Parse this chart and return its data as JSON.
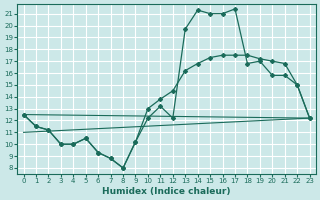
{
  "title": "",
  "xlabel": "Humidex (Indice chaleur)",
  "background_color": "#cce8e8",
  "grid_color": "#ffffff",
  "line_color": "#1a6b5a",
  "x_ticks": [
    0,
    1,
    2,
    3,
    4,
    5,
    6,
    7,
    8,
    9,
    10,
    11,
    12,
    13,
    14,
    15,
    16,
    17,
    18,
    19,
    20,
    21,
    22,
    23
  ],
  "y_ticks": [
    8,
    9,
    10,
    11,
    12,
    13,
    14,
    15,
    16,
    17,
    18,
    19,
    20,
    21
  ],
  "ylim": [
    7.5,
    21.8
  ],
  "xlim": [
    -0.5,
    23.5
  ],
  "series1_x": [
    0,
    1,
    2,
    3,
    4,
    5,
    6,
    7,
    8,
    9,
    10,
    11,
    12,
    13,
    14,
    15,
    16,
    17,
    18,
    19,
    20,
    21,
    22,
    23
  ],
  "series1_y": [
    12.5,
    11.5,
    11.2,
    10.0,
    10.0,
    10.5,
    9.3,
    8.8,
    8.0,
    10.2,
    12.2,
    13.2,
    12.2,
    19.7,
    21.3,
    21.0,
    21.0,
    21.4,
    16.8,
    17.0,
    15.8,
    15.8,
    15.0,
    12.2
  ],
  "series2_x": [
    0,
    1,
    2,
    3,
    4,
    5,
    6,
    7,
    8,
    9,
    10,
    11,
    12,
    13,
    14,
    15,
    16,
    17,
    18,
    19,
    20,
    21,
    22,
    23
  ],
  "series2_y": [
    12.5,
    11.5,
    11.2,
    10.0,
    10.0,
    10.5,
    9.3,
    8.8,
    8.0,
    10.2,
    13.0,
    13.8,
    14.5,
    16.2,
    16.8,
    17.3,
    17.5,
    17.5,
    17.5,
    17.2,
    17.0,
    16.8,
    15.0,
    12.2
  ],
  "series3_x": [
    0,
    23
  ],
  "series3_y": [
    12.5,
    12.2
  ],
  "series4_x": [
    0,
    23
  ],
  "series4_y": [
    11.0,
    12.2
  ]
}
